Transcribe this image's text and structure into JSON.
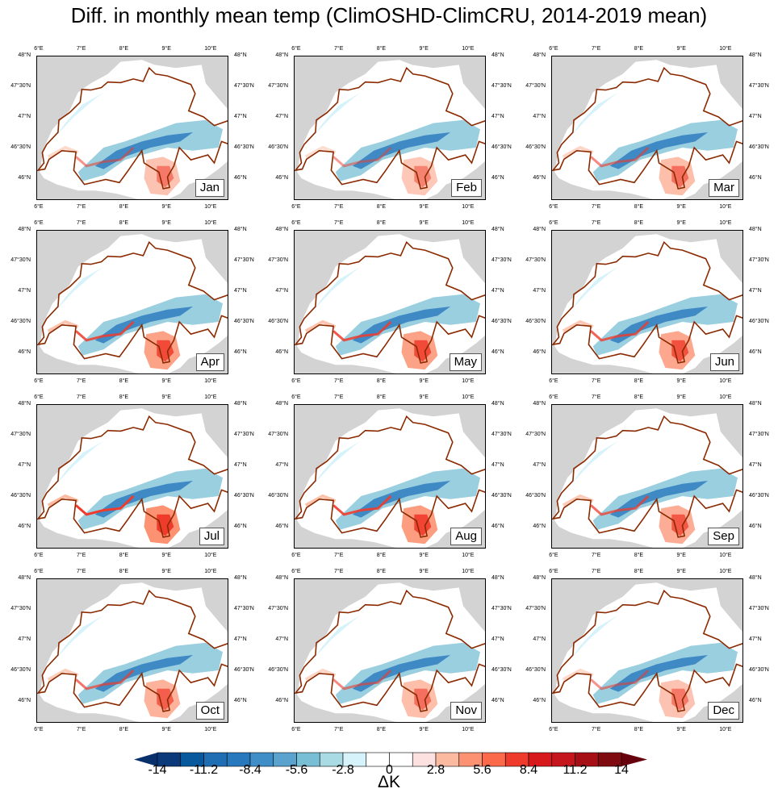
{
  "title": "Diff. in monthly mean temp (ClimOSHD-ClimCRU, 2014-2019 mean)",
  "months": [
    "Jan",
    "Feb",
    "Mar",
    "Apr",
    "May",
    "Jun",
    "Jul",
    "Aug",
    "Sep",
    "Oct",
    "Nov",
    "Dec"
  ],
  "lon_labels": [
    {
      "lon": 6,
      "text": "6°E"
    },
    {
      "lon": 7,
      "text": "7°E"
    },
    {
      "lon": 8,
      "text": "8°E"
    },
    {
      "lon": 9,
      "text": "9°E"
    },
    {
      "lon": 10,
      "text": "10°E"
    }
  ],
  "lat_labels": [
    {
      "lat": 48,
      "text": "48°N"
    },
    {
      "lat": 47.5,
      "text": "47°30'N"
    },
    {
      "lat": 47,
      "text": "47°N"
    },
    {
      "lat": 46.5,
      "text": "46°30'N"
    },
    {
      "lat": 46,
      "text": "46°N"
    }
  ],
  "colorbar": {
    "unit": "ΔK",
    "min": -14,
    "max": 14,
    "step": 1.4,
    "labels": [
      "-14",
      "-11.2",
      "-8.4",
      "-5.6",
      "-2.8",
      "0",
      "2.8",
      "5.6",
      "8.4",
      "11.2",
      "14"
    ],
    "colors": [
      "#0a3a7a",
      "#08589e",
      "#1f6db2",
      "#2878bd",
      "#3f8ec8",
      "#5ba3cf",
      "#78bfd6",
      "#a8dbe4",
      "#d6f2fa",
      "#ffffff",
      "#ffffff",
      "#fde0e0",
      "#fcbba1",
      "#fc9272",
      "#fb6a4a",
      "#ef3b2c",
      "#d7191c",
      "#c4161c",
      "#a50f15",
      "#7f0a10"
    ],
    "under_color": "#08306b",
    "over_color": "#67000d"
  },
  "colors": {
    "background": "#d3d3d3",
    "border": "#8b2a00"
  }
}
